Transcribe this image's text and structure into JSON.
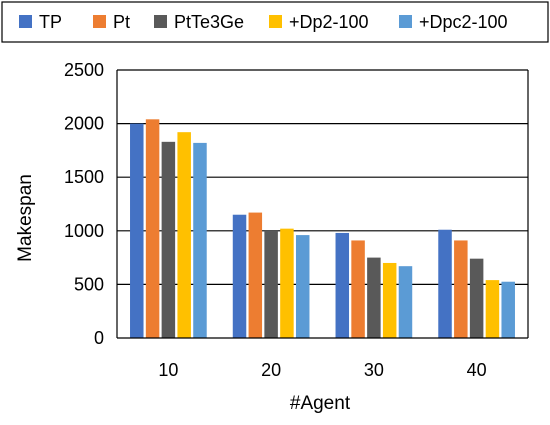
{
  "chart_data": {
    "type": "bar",
    "title": "",
    "xlabel": "#Agent",
    "ylabel": "Makespan",
    "categories": [
      "10",
      "20",
      "30",
      "40"
    ],
    "series": [
      {
        "name": "TP",
        "color": "#4472C4",
        "values": [
          2000,
          1150,
          980,
          1010
        ]
      },
      {
        "name": "Pt",
        "color": "#ED7D31",
        "values": [
          2040,
          1170,
          910,
          910
        ]
      },
      {
        "name": "PtTe3Ge",
        "color": "#595959",
        "values": [
          1830,
          1000,
          750,
          740
        ]
      },
      {
        "name": "+Dp2-100",
        "color": "#FFC000",
        "values": [
          1920,
          1020,
          700,
          540
        ]
      },
      {
        "name": "+Dpc2-100",
        "color": "#5B9BD5",
        "values": [
          1820,
          960,
          670,
          525
        ]
      }
    ],
    "ylim": [
      0,
      2500
    ],
    "yticks": [
      0,
      500,
      1000,
      1500,
      2000,
      2500
    ],
    "grid": true,
    "legend_position": "top"
  }
}
